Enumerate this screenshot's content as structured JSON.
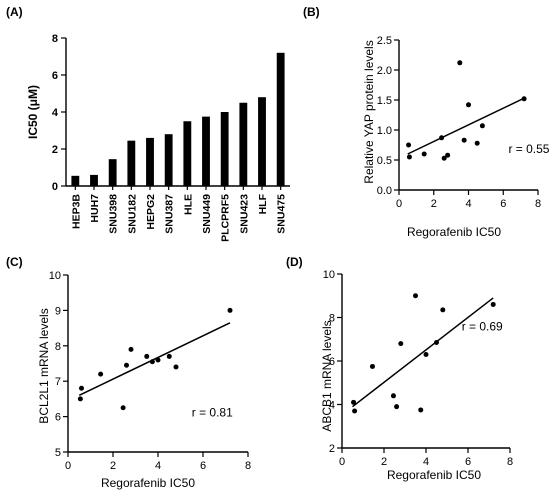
{
  "chart_data": [
    {
      "id": "A",
      "panel_label": "(A)",
      "type": "bar",
      "ylabel": "IC50 (μM)",
      "ylim": [
        0,
        8
      ],
      "yticks": [
        0,
        2,
        4,
        6,
        8
      ],
      "categories": [
        "HEP3B",
        "HUH7",
        "SNU398",
        "SNU182",
        "HEPG2",
        "SNU387",
        "HLE",
        "SNU449",
        "PLCPRF5",
        "SNU423",
        "HLF",
        "SNU475"
      ],
      "values": [
        0.55,
        0.6,
        1.45,
        2.45,
        2.6,
        2.8,
        3.5,
        3.75,
        4.0,
        4.5,
        4.8,
        7.2
      ]
    },
    {
      "id": "B",
      "panel_label": "(B)",
      "type": "scatter",
      "xlabel": "Regorafenib IC50",
      "ylabel": "Relative YAP protein levels",
      "xlim": [
        0,
        8
      ],
      "ylim": [
        0,
        2.5
      ],
      "xticks": [
        0,
        2,
        4,
        6,
        8
      ],
      "yticks": [
        0.0,
        0.5,
        1.0,
        1.5,
        2.0,
        2.5
      ],
      "points": [
        [
          0.55,
          0.75
        ],
        [
          0.6,
          0.55
        ],
        [
          1.45,
          0.6
        ],
        [
          2.45,
          0.87
        ],
        [
          2.6,
          0.53
        ],
        [
          2.8,
          0.58
        ],
        [
          3.5,
          2.12
        ],
        [
          3.75,
          0.83
        ],
        [
          4.0,
          1.42
        ],
        [
          4.5,
          0.78
        ],
        [
          4.8,
          1.07
        ],
        [
          7.2,
          1.52
        ]
      ],
      "fit": [
        [
          0.5,
          0.6
        ],
        [
          7.2,
          1.53
        ]
      ],
      "annotation": "r = 0.55",
      "annotation_pos": [
        6.3,
        0.62
      ]
    },
    {
      "id": "C",
      "panel_label": "(C)",
      "type": "scatter",
      "xlabel": "Regorafenib IC50",
      "ylabel": "BCL2L1 mRNA levels",
      "xlim": [
        0,
        8
      ],
      "ylim": [
        5,
        10
      ],
      "xticks": [
        0,
        2,
        4,
        6,
        8
      ],
      "yticks": [
        5,
        6,
        7,
        8,
        9,
        10
      ],
      "points": [
        [
          0.55,
          6.5
        ],
        [
          0.6,
          6.8
        ],
        [
          1.45,
          7.2
        ],
        [
          2.45,
          6.25
        ],
        [
          2.6,
          7.45
        ],
        [
          2.8,
          7.9
        ],
        [
          3.5,
          7.7
        ],
        [
          3.75,
          7.55
        ],
        [
          4.0,
          7.6
        ],
        [
          4.5,
          7.7
        ],
        [
          4.8,
          7.4
        ],
        [
          7.2,
          9.0
        ]
      ],
      "fit": [
        [
          0.5,
          6.6
        ],
        [
          7.2,
          8.65
        ]
      ],
      "annotation": "r = 0.81",
      "annotation_pos": [
        5.5,
        6.0
      ]
    },
    {
      "id": "D",
      "panel_label": "(D)",
      "type": "scatter",
      "xlabel": "Regorafenib IC50",
      "ylabel": "ABCB1 mRNA levels",
      "xlim": [
        0,
        8
      ],
      "ylim": [
        2,
        10
      ],
      "xticks": [
        0,
        2,
        4,
        6,
        8
      ],
      "yticks": [
        2,
        4,
        6,
        8,
        10
      ],
      "points": [
        [
          0.55,
          4.1
        ],
        [
          0.6,
          3.7
        ],
        [
          1.45,
          5.75
        ],
        [
          2.45,
          4.4
        ],
        [
          2.6,
          3.9
        ],
        [
          2.8,
          6.8
        ],
        [
          3.5,
          9.0
        ],
        [
          3.75,
          3.75
        ],
        [
          4.0,
          6.3
        ],
        [
          4.5,
          6.85
        ],
        [
          4.8,
          8.35
        ],
        [
          7.2,
          8.6
        ]
      ],
      "fit": [
        [
          0.5,
          3.9
        ],
        [
          7.2,
          8.9
        ]
      ],
      "annotation": "r = 0.69",
      "annotation_pos": [
        5.7,
        7.4
      ]
    }
  ]
}
